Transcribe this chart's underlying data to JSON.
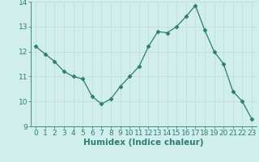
{
  "x": [
    0,
    1,
    2,
    3,
    4,
    5,
    6,
    7,
    8,
    9,
    10,
    11,
    12,
    13,
    14,
    15,
    16,
    17,
    18,
    19,
    20,
    21,
    22,
    23
  ],
  "y": [
    12.2,
    11.9,
    11.6,
    11.2,
    11.0,
    10.9,
    10.2,
    9.9,
    10.1,
    10.6,
    11.0,
    11.4,
    12.2,
    12.8,
    12.75,
    13.0,
    13.4,
    13.85,
    12.85,
    12.0,
    11.5,
    10.4,
    10.0,
    9.3
  ],
  "line_color": "#2e7d72",
  "marker": "D",
  "marker_size": 2.5,
  "bg_color": "#d0eeeb",
  "grid_color": "#c8dbd8",
  "xlabel": "Humidex (Indice chaleur)",
  "ylim": [
    9,
    14
  ],
  "xlim": [
    -0.5,
    23.5
  ],
  "yticks": [
    9,
    10,
    11,
    12,
    13,
    14
  ],
  "xticks": [
    0,
    1,
    2,
    3,
    4,
    5,
    6,
    7,
    8,
    9,
    10,
    11,
    12,
    13,
    14,
    15,
    16,
    17,
    18,
    19,
    20,
    21,
    22,
    23
  ],
  "xlabel_fontsize": 7.5,
  "tick_fontsize": 6.5,
  "spine_color": "#2e7d72",
  "tick_color": "#2e7d72"
}
